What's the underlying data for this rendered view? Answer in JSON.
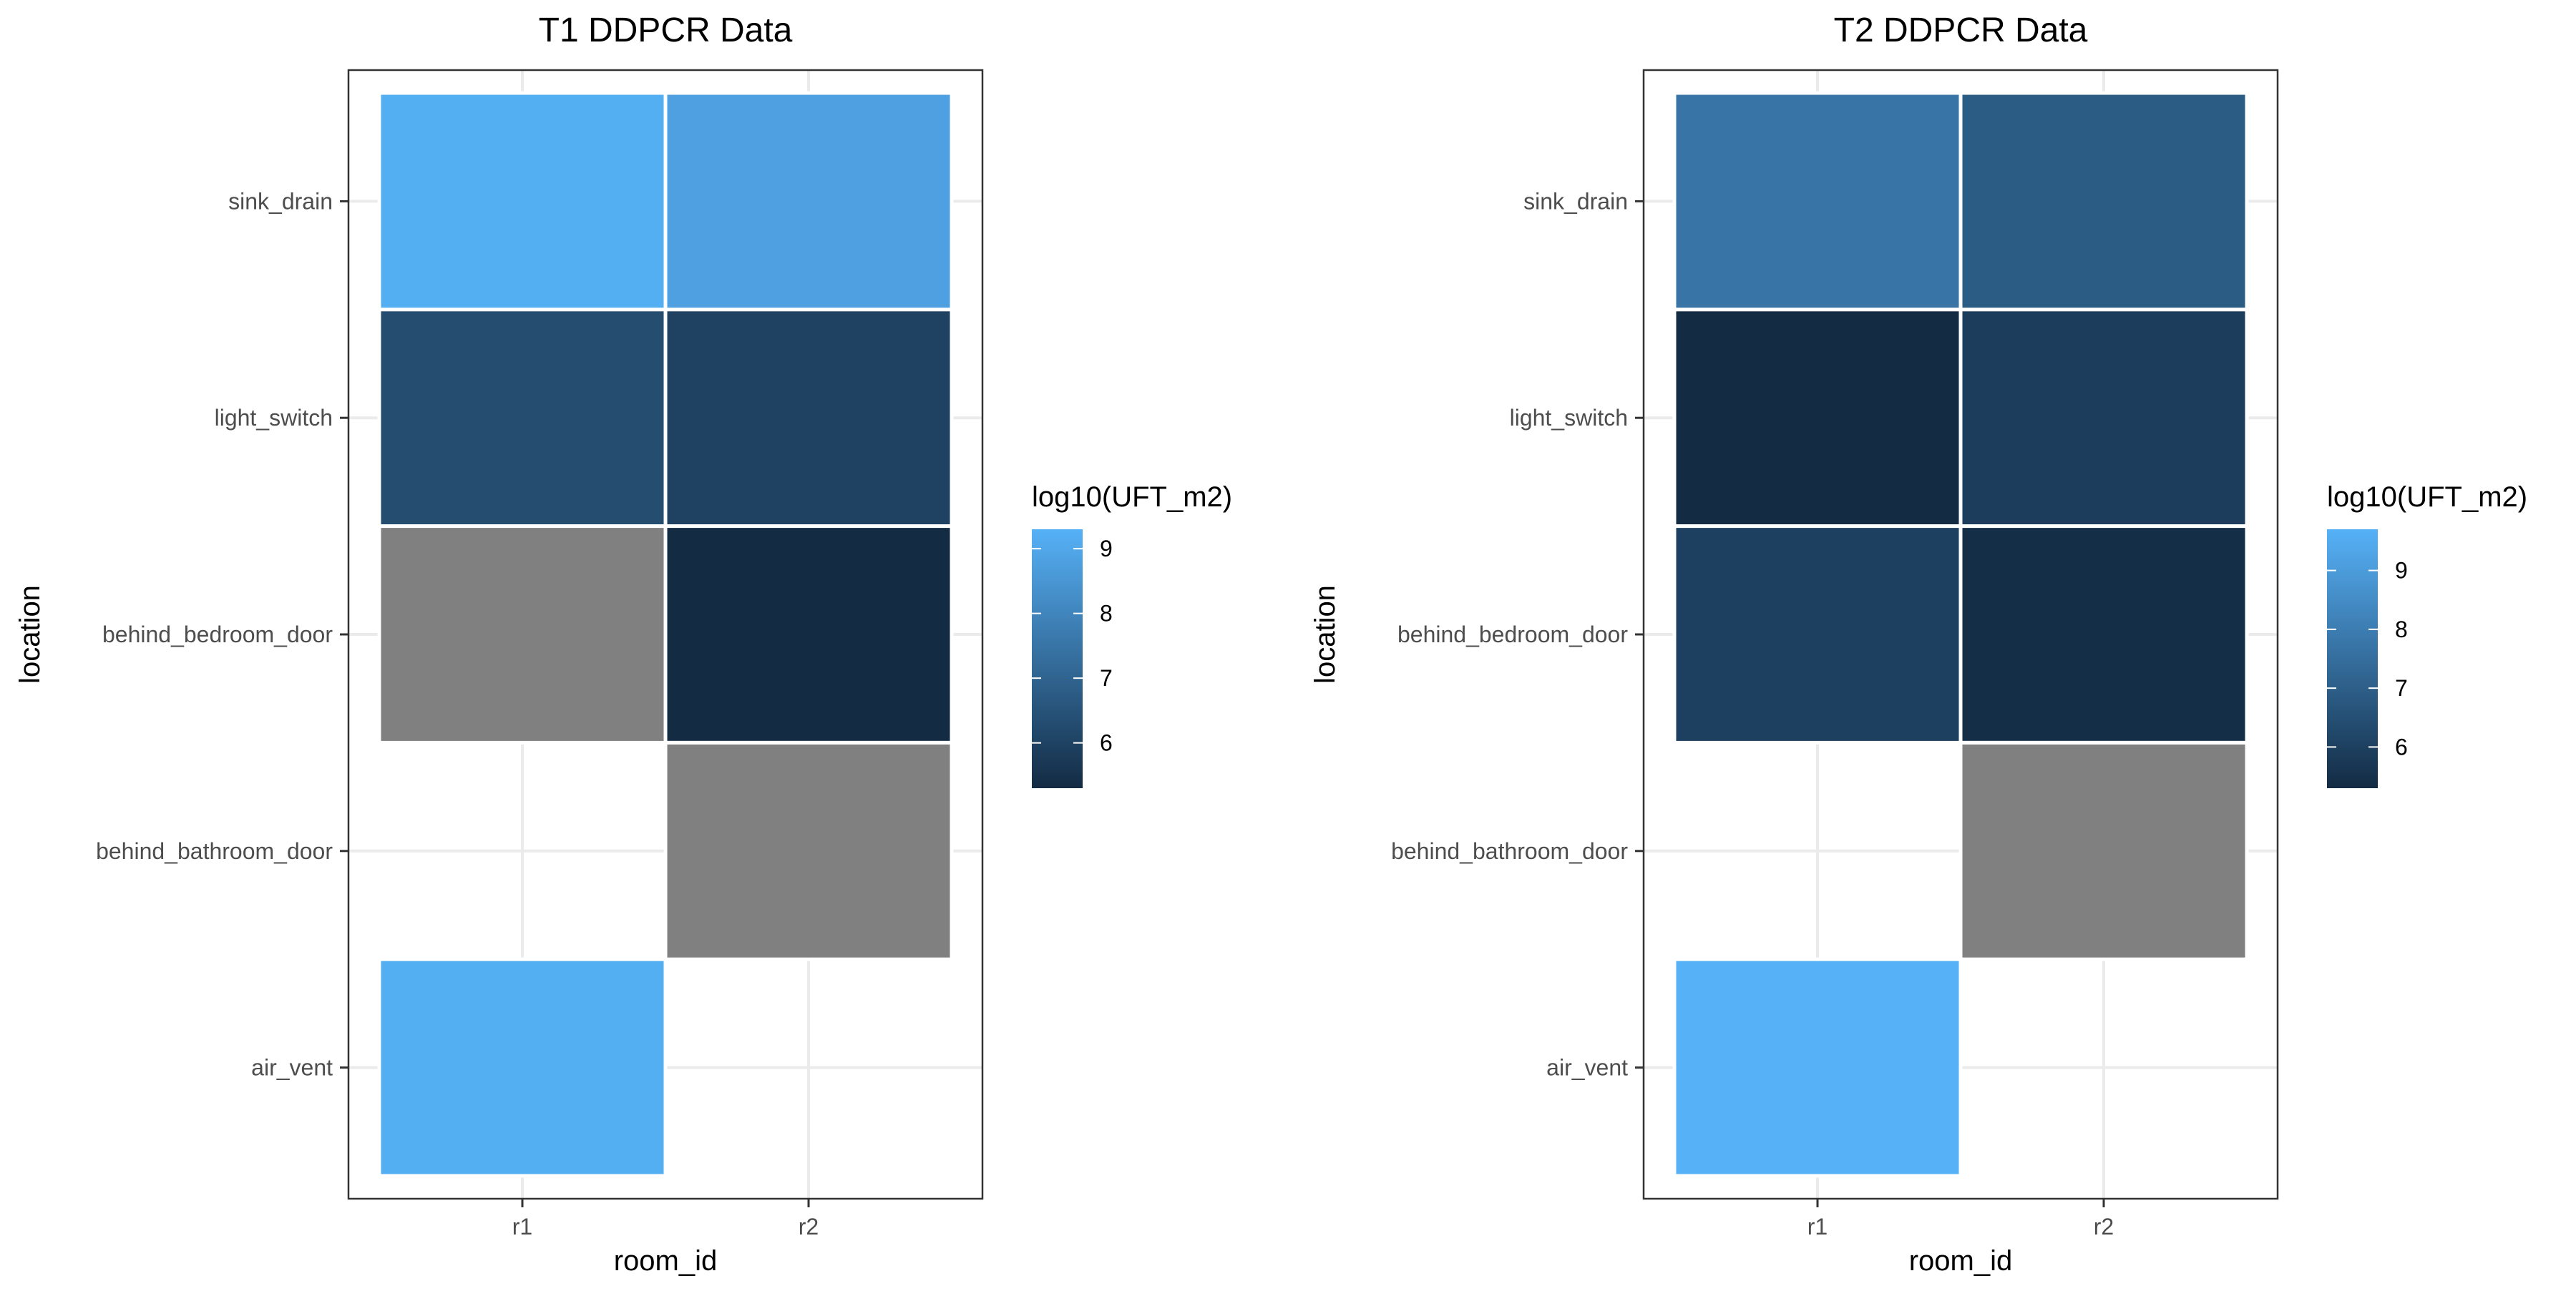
{
  "chart_data": [
    {
      "type": "heatmap",
      "title": "T1 DDPCR Data",
      "xlabel": "room_id",
      "ylabel": "location",
      "x_categories": [
        "r1",
        "r2"
      ],
      "y_categories": [
        "sink_drain",
        "light_switch",
        "behind_bedroom_door",
        "behind_bathroom_door",
        "air_vent"
      ],
      "cells": [
        {
          "x": "r1",
          "y": "sink_drain",
          "value": 9.2
        },
        {
          "x": "r2",
          "y": "sink_drain",
          "value": 8.8
        },
        {
          "x": "r1",
          "y": "light_switch",
          "value": 6.3
        },
        {
          "x": "r2",
          "y": "light_switch",
          "value": 6.0
        },
        {
          "x": "r1",
          "y": "behind_bedroom_door",
          "value": null
        },
        {
          "x": "r2",
          "y": "behind_bedroom_door",
          "value": 5.3
        },
        {
          "x": "r2",
          "y": "behind_bathroom_door",
          "value": null
        },
        {
          "x": "r1",
          "y": "air_vent",
          "value": 9.2
        }
      ],
      "legend": {
        "title": "log10(UFT_m2)",
        "ticks": [
          6,
          7,
          8,
          9
        ],
        "range": [
          5.3,
          9.3
        ],
        "placement": "right"
      },
      "na_color": "#808080",
      "colors": {
        "low": "#132B43",
        "high": "#56B1F7"
      },
      "grid": true
    },
    {
      "type": "heatmap",
      "title": "T2 DDPCR Data",
      "xlabel": "room_id",
      "ylabel": "location",
      "x_categories": [
        "r1",
        "r2"
      ],
      "y_categories": [
        "sink_drain",
        "light_switch",
        "behind_bedroom_door",
        "behind_bathroom_door",
        "air_vent"
      ],
      "cells": [
        {
          "x": "r1",
          "y": "sink_drain",
          "value": 7.7
        },
        {
          "x": "r2",
          "y": "sink_drain",
          "value": 6.9
        },
        {
          "x": "r1",
          "y": "light_switch",
          "value": 5.3
        },
        {
          "x": "r2",
          "y": "light_switch",
          "value": 5.9
        },
        {
          "x": "r1",
          "y": "behind_bedroom_door",
          "value": 6.0
        },
        {
          "x": "r2",
          "y": "behind_bedroom_door",
          "value": 5.4
        },
        {
          "x": "r2",
          "y": "behind_bathroom_door",
          "value": null
        },
        {
          "x": "r1",
          "y": "air_vent",
          "value": 9.7
        }
      ],
      "legend": {
        "title": "log10(UFT_m2)",
        "ticks": [
          6,
          7,
          8,
          9
        ],
        "range": [
          5.3,
          9.7
        ],
        "placement": "right"
      },
      "na_color": "#808080",
      "colors": {
        "low": "#132B43",
        "high": "#56B1F7"
      },
      "grid": true
    }
  ]
}
